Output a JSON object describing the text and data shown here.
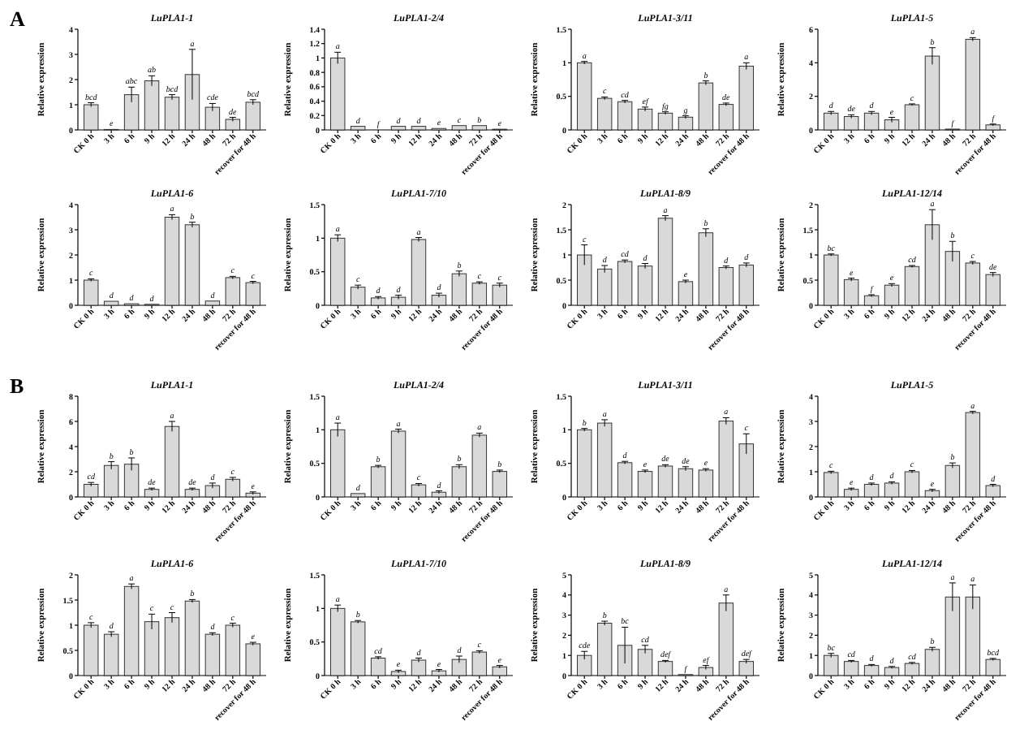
{
  "chart_data": [
    {
      "type": "bar",
      "title": "LuPLA1-1",
      "ylabel": "Relative expression",
      "annotations": [
        "A"
      ],
      "categories": [
        "CK 0 h",
        "3 h",
        "6 h",
        "9 h",
        "12 h",
        "24 h",
        "48 h",
        "72 h",
        "recover for 48 h"
      ],
      "color": "#d9d9d9",
      "ylim": [
        0,
        4
      ],
      "yticks": [
        0,
        1,
        2,
        3,
        4
      ],
      "values": [
        1.0,
        0.02,
        1.4,
        1.95,
        1.3,
        2.2,
        0.9,
        0.42,
        1.1
      ],
      "errors": [
        0.08,
        null,
        0.3,
        0.2,
        0.1,
        1.0,
        0.15,
        0.08,
        0.1
      ],
      "value_labels": [
        "bcd",
        "e",
        "abc",
        "ab",
        "bcd",
        "a",
        "cde",
        "de",
        "bcd"
      ]
    },
    {
      "type": "bar",
      "title": "LuPLA1-2/4",
      "ylabel": "Relative expression",
      "categories": [
        "CK 0 h",
        "3 h",
        "6 h",
        "9 h",
        "12 h",
        "24 h",
        "48 h",
        "72 h",
        "recover for 48 h"
      ],
      "color": "#d9d9d9",
      "ylim": [
        0,
        1.4
      ],
      "yticks": [
        0,
        0.2,
        0.4,
        0.6,
        0.8,
        1.0,
        1.2,
        1.4
      ],
      "values": [
        1.0,
        0.05,
        0,
        0.05,
        0.05,
        0.02,
        0.06,
        0.06,
        0.01
      ],
      "errors": [
        0.08,
        null,
        null,
        null,
        null,
        null,
        null,
        null,
        null
      ],
      "value_labels": [
        "a",
        "d",
        "f",
        "d",
        "d",
        "e",
        "c",
        "b",
        "e"
      ]
    },
    {
      "type": "bar",
      "title": "LuPLA1-3/11",
      "ylabel": "Relative expression",
      "categories": [
        "CK 0 h",
        "3 h",
        "6 h",
        "9 h",
        "12 h",
        "24 h",
        "48 h",
        "72 h",
        "recover for 48 h"
      ],
      "color": "#d9d9d9",
      "ylim": [
        0,
        1.5
      ],
      "yticks": [
        0,
        0.5,
        1,
        1.5
      ],
      "values": [
        1.0,
        0.47,
        0.42,
        0.31,
        0.25,
        0.19,
        0.7,
        0.38,
        0.95
      ],
      "errors": [
        0.02,
        0.02,
        0.02,
        0.03,
        0.02,
        0.02,
        0.03,
        0.02,
        0.05
      ],
      "value_labels": [
        "a",
        "c",
        "cd",
        "ef",
        "fg",
        "g",
        "b",
        "de",
        "a"
      ]
    },
    {
      "type": "bar",
      "title": "LuPLA1-5",
      "ylabel": "Relative expression",
      "categories": [
        "CK 0 h",
        "3 h",
        "6 h",
        "9 h",
        "12 h",
        "24 h",
        "48 h",
        "72 h",
        "recover for 48 h"
      ],
      "color": "#d9d9d9",
      "ylim": [
        0,
        6
      ],
      "yticks": [
        0,
        2,
        4,
        6
      ],
      "values": [
        1.0,
        0.8,
        1.0,
        0.6,
        1.5,
        4.4,
        0.05,
        5.4,
        0.3
      ],
      "errors": [
        0.1,
        0.1,
        0.1,
        0.15,
        0.05,
        0.5,
        null,
        0.1,
        0.05
      ],
      "value_labels": [
        "d",
        "de",
        "d",
        "e",
        "c",
        "b",
        "f",
        "a",
        "f"
      ]
    },
    {
      "type": "bar",
      "title": "LuPLA1-6",
      "ylabel": "Relative expression",
      "categories": [
        "CK 0 h",
        "3 h",
        "6 h",
        "9 h",
        "12 h",
        "24 h",
        "48 h",
        "72 h",
        "recover for 48 h"
      ],
      "color": "#d9d9d9",
      "ylim": [
        0,
        4
      ],
      "yticks": [
        0,
        1,
        2,
        3,
        4
      ],
      "values": [
        1.0,
        0.16,
        0.06,
        0.04,
        3.5,
        3.2,
        0.17,
        1.1,
        0.9
      ],
      "errors": [
        0.05,
        null,
        null,
        null,
        0.1,
        0.1,
        null,
        0.05,
        0.05
      ],
      "value_labels": [
        "c",
        "d",
        "d",
        "d",
        "a",
        "b",
        "d",
        "c",
        "c"
      ]
    },
    {
      "type": "bar",
      "title": "LuPLA1-7/10",
      "ylabel": "Relative expression",
      "categories": [
        "CK 0 h",
        "3 h",
        "6 h",
        "9 h",
        "12 h",
        "24 h",
        "48 h",
        "72 h",
        "recover for 48 h"
      ],
      "color": "#d9d9d9",
      "ylim": [
        0,
        1.5
      ],
      "yticks": [
        0,
        0.5,
        1,
        1.5
      ],
      "values": [
        1.0,
        0.27,
        0.11,
        0.12,
        0.98,
        0.15,
        0.47,
        0.33,
        0.3
      ],
      "errors": [
        0.05,
        0.03,
        0.02,
        0.03,
        0.03,
        0.03,
        0.04,
        0.02,
        0.03
      ],
      "value_labels": [
        "a",
        "c",
        "d",
        "d",
        "a",
        "d",
        "b",
        "c",
        "c"
      ]
    },
    {
      "type": "bar",
      "title": "LuPLA1-8/9",
      "ylabel": "Relative expression",
      "categories": [
        "CK 0 h",
        "3 h",
        "6 h",
        "9 h",
        "12 h",
        "24 h",
        "48 h",
        "72 h",
        "recover for 48 h"
      ],
      "color": "#d9d9d9",
      "ylim": [
        0,
        2
      ],
      "yticks": [
        0,
        0.5,
        1,
        1.5,
        2
      ],
      "values": [
        1.0,
        0.72,
        0.87,
        0.78,
        1.73,
        0.47,
        1.44,
        0.75,
        0.8
      ],
      "errors": [
        0.2,
        0.07,
        0.03,
        0.05,
        0.05,
        0.03,
        0.08,
        0.03,
        0.04
      ],
      "value_labels": [
        "c",
        "d",
        "cd",
        "d",
        "a",
        "e",
        "b",
        "d",
        "d"
      ]
    },
    {
      "type": "bar",
      "title": "LuPLA1-12/14",
      "ylabel": "Relative expression",
      "categories": [
        "CK 0 h",
        "3 h",
        "6 h",
        "9 h",
        "12 h",
        "24 h",
        "48 h",
        "72 h",
        "recover for 48 h"
      ],
      "color": "#d9d9d9",
      "ylim": [
        0,
        2
      ],
      "yticks": [
        0,
        0.5,
        1,
        1.5,
        2
      ],
      "values": [
        1.0,
        0.51,
        0.19,
        0.4,
        0.77,
        1.6,
        1.07,
        0.84,
        0.61
      ],
      "errors": [
        0.02,
        0.03,
        0.02,
        0.03,
        0.02,
        0.3,
        0.2,
        0.03,
        0.04
      ],
      "value_labels": [
        "bc",
        "e",
        "f",
        "e",
        "cd",
        "a",
        "b",
        "c",
        "de"
      ]
    },
    {
      "type": "bar",
      "title": "LuPLA1-1",
      "ylabel": "Relative expression",
      "annotations": [
        "B"
      ],
      "categories": [
        "CK 0 h",
        "3 h",
        "6 h",
        "9 h",
        "12 h",
        "24 h",
        "48 h",
        "72 h",
        "recover for 48 h"
      ],
      "color": "#d9d9d9",
      "ylim": [
        0,
        8
      ],
      "yticks": [
        0,
        2,
        4,
        6,
        8
      ],
      "values": [
        1.0,
        2.5,
        2.6,
        0.6,
        5.6,
        0.6,
        0.9,
        1.4,
        0.3
      ],
      "errors": [
        0.15,
        0.3,
        0.5,
        0.1,
        0.4,
        0.1,
        0.2,
        0.15,
        0.1
      ],
      "value_labels": [
        "cd",
        "b",
        "b",
        "de",
        "a",
        "de",
        "d",
        "c",
        "e"
      ]
    },
    {
      "type": "bar",
      "title": "LuPLA1-2/4",
      "ylabel": "Relative expression",
      "categories": [
        "CK 0 h",
        "3 h",
        "6 h",
        "9 h",
        "12 h",
        "24 h",
        "48 h",
        "72 h",
        "recover for 48 h"
      ],
      "color": "#d9d9d9",
      "ylim": [
        0,
        1.5
      ],
      "yticks": [
        0,
        0.5,
        1,
        1.5
      ],
      "values": [
        1.0,
        0.05,
        0.45,
        0.98,
        0.18,
        0.07,
        0.45,
        0.92,
        0.38
      ],
      "errors": [
        0.1,
        null,
        0.02,
        0.03,
        0.02,
        0.02,
        0.03,
        0.03,
        0.02
      ],
      "value_labels": [
        "a",
        "d",
        "b",
        "a",
        "c",
        "d",
        "b",
        "a",
        "b"
      ]
    },
    {
      "type": "bar",
      "title": "LuPLA1-3/11",
      "ylabel": "Relative expression",
      "categories": [
        "CK 0 h",
        "3 h",
        "6 h",
        "9 h",
        "12 h",
        "24 h",
        "48 h",
        "72 h",
        "recover for 48 h"
      ],
      "color": "#d9d9d9",
      "ylim": [
        0,
        1.5
      ],
      "yticks": [
        0,
        0.5,
        1,
        1.5
      ],
      "values": [
        1.0,
        1.1,
        0.51,
        0.38,
        0.46,
        0.42,
        0.4,
        1.13,
        0.79
      ],
      "errors": [
        0.02,
        0.05,
        0.02,
        0.02,
        0.02,
        0.03,
        0.02,
        0.05,
        0.15
      ],
      "value_labels": [
        "b",
        "a",
        "d",
        "e",
        "de",
        "de",
        "e",
        "a",
        "c"
      ]
    },
    {
      "type": "bar",
      "title": "LuPLA1-5",
      "ylabel": "Relative expression",
      "categories": [
        "CK 0 h",
        "3 h",
        "6 h",
        "9 h",
        "12 h",
        "24 h",
        "48 h",
        "72 h",
        "recover for 48 h"
      ],
      "color": "#d9d9d9",
      "ylim": [
        0,
        4
      ],
      "yticks": [
        0,
        1,
        2,
        3,
        4
      ],
      "values": [
        0.97,
        0.3,
        0.5,
        0.55,
        1.0,
        0.25,
        1.25,
        3.35,
        0.45
      ],
      "errors": [
        0.05,
        0.05,
        0.05,
        0.05,
        0.05,
        0.05,
        0.1,
        0.05,
        0.05
      ],
      "value_labels": [
        "c",
        "e",
        "d",
        "d",
        "c",
        "e",
        "b",
        "a",
        "d"
      ]
    },
    {
      "type": "bar",
      "title": "LuPLA1-6",
      "ylabel": "Relative expression",
      "categories": [
        "CK 0 h",
        "3 h",
        "6 h",
        "9 h",
        "12 h",
        "24 h",
        "48 h",
        "72 h",
        "recover for 48 h"
      ],
      "color": "#d9d9d9",
      "ylim": [
        0,
        2
      ],
      "yticks": [
        0,
        0.5,
        1,
        1.5,
        2
      ],
      "values": [
        1.0,
        0.82,
        1.77,
        1.07,
        1.15,
        1.48,
        0.82,
        1.0,
        0.63
      ],
      "errors": [
        0.05,
        0.05,
        0.05,
        0.15,
        0.1,
        0.03,
        0.03,
        0.04,
        0.03
      ],
      "value_labels": [
        "c",
        "d",
        "a",
        "c",
        "c",
        "b",
        "d",
        "c",
        "e"
      ]
    },
    {
      "type": "bar",
      "title": "LuPLA1-7/10",
      "ylabel": "Relative expression",
      "categories": [
        "CK 0 h",
        "3 h",
        "6 h",
        "9 h",
        "12 h",
        "24 h",
        "48 h",
        "72 h",
        "recover for 48 h"
      ],
      "color": "#d9d9d9",
      "ylim": [
        0,
        1.5
      ],
      "yticks": [
        0,
        0.5,
        1,
        1.5
      ],
      "values": [
        1.0,
        0.8,
        0.26,
        0.06,
        0.23,
        0.07,
        0.24,
        0.35,
        0.13
      ],
      "errors": [
        0.05,
        0.02,
        0.02,
        0.02,
        0.03,
        0.02,
        0.05,
        0.02,
        0.02
      ],
      "value_labels": [
        "a",
        "b",
        "cd",
        "e",
        "d",
        "e",
        "d",
        "c",
        "e"
      ]
    },
    {
      "type": "bar",
      "title": "LuPLA1-8/9",
      "ylabel": "Relative expression",
      "categories": [
        "CK 0 h",
        "3 h",
        "6 h",
        "9 h",
        "12 h",
        "24 h",
        "48 h",
        "72 h",
        "recover for 48 h"
      ],
      "color": "#d9d9d9",
      "ylim": [
        0,
        5
      ],
      "yticks": [
        0,
        1,
        2,
        3,
        4,
        5
      ],
      "values": [
        1.0,
        2.6,
        1.5,
        1.3,
        0.7,
        0.05,
        0.4,
        3.6,
        0.7
      ],
      "errors": [
        0.2,
        0.1,
        0.9,
        0.2,
        0.05,
        null,
        0.1,
        0.4,
        0.1
      ],
      "value_labels": [
        "cde",
        "b",
        "bc",
        "cd",
        "def",
        "f",
        "ef",
        "a",
        "def"
      ]
    },
    {
      "type": "bar",
      "title": "LuPLA1-12/14",
      "ylabel": "Relative expression",
      "categories": [
        "CK 0 h",
        "3 h",
        "6 h",
        "9 h",
        "12 h",
        "24 h",
        "48 h",
        "72 h",
        "recover for 48 h"
      ],
      "color": "#d9d9d9",
      "ylim": [
        0,
        5
      ],
      "yticks": [
        0,
        1,
        2,
        3,
        4,
        5
      ],
      "values": [
        1.0,
        0.7,
        0.5,
        0.4,
        0.6,
        1.3,
        3.9,
        3.9,
        0.8
      ],
      "errors": [
        0.1,
        0.05,
        0.05,
        0.05,
        0.05,
        0.1,
        0.7,
        0.6,
        0.05
      ],
      "value_labels": [
        "bc",
        "cd",
        "d",
        "d",
        "cd",
        "b",
        "a",
        "a",
        "bcd"
      ]
    }
  ]
}
